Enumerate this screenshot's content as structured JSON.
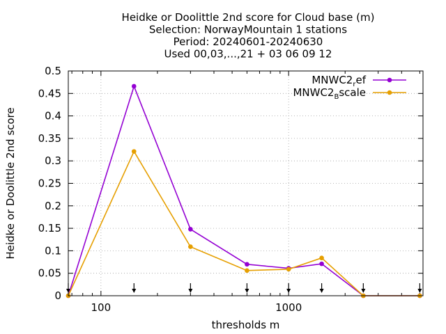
{
  "chart_data": {
    "type": "line",
    "title_lines": [
      "Heidke or Doolittle 2nd score  for Cloud base (m)",
      "Selection: NorwayMountain      1 stations",
      "Period: 20240601-20240630",
      "Used 00,03,...,21 + 03 06 09 12"
    ],
    "xlabel": "thresholds m",
    "ylabel": "Heidke or Doolittle 2nd score",
    "x_scale": "log",
    "xlim": [
      67,
      5200
    ],
    "ylim": [
      0,
      0.5
    ],
    "x_ticks": [
      100,
      1000
    ],
    "x_tick_labels": [
      "100",
      "1000"
    ],
    "y_ticks": [
      0,
      0.05,
      0.1,
      0.15,
      0.2,
      0.25,
      0.3,
      0.35,
      0.4,
      0.45,
      0.5
    ],
    "y_tick_labels": [
      "0",
      "0.05",
      "0.1",
      "0.15",
      "0.2",
      "0.25",
      "0.3",
      "0.35",
      "0.4",
      "0.45",
      "0.5"
    ],
    "grid": true,
    "legend_position": "top-right",
    "threshold_markers": [
      67,
      150,
      300,
      600,
      1000,
      1500,
      2500,
      5000
    ],
    "series": [
      {
        "name_main": "MNWC2",
        "name_sub": "r",
        "name_rest": "ef",
        "color": "#9400d3",
        "x": [
          67,
          150,
          300,
          600,
          1000,
          1500,
          2500,
          5000
        ],
        "y": [
          0.0,
          0.466,
          0.148,
          0.07,
          0.061,
          0.071,
          0.0,
          0.0
        ]
      },
      {
        "name_main": "MNWC2",
        "name_sub": "B",
        "name_rest": "scale",
        "color": "#e69f00",
        "x": [
          67,
          150,
          300,
          600,
          1000,
          1500,
          2500,
          5000
        ],
        "y": [
          0.0,
          0.321,
          0.109,
          0.056,
          0.059,
          0.084,
          0.0,
          0.0
        ]
      }
    ]
  }
}
